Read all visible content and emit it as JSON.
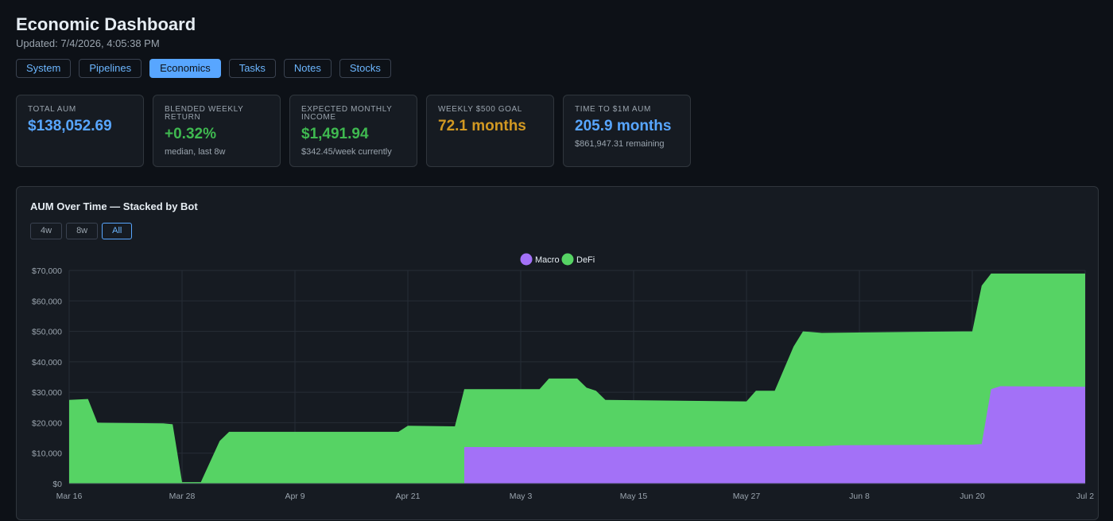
{
  "header": {
    "title": "Economic Dashboard",
    "updated": "Updated: 7/4/2026, 4:05:38 PM"
  },
  "tabs": [
    {
      "label": "System",
      "active": false
    },
    {
      "label": "Pipelines",
      "active": false
    },
    {
      "label": "Economics",
      "active": true
    },
    {
      "label": "Tasks",
      "active": false
    },
    {
      "label": "Notes",
      "active": false
    },
    {
      "label": "Stocks",
      "active": false
    }
  ],
  "cards": [
    {
      "label": "TOTAL AUM",
      "value": "$138,052.69",
      "sub": "",
      "color": "#58a6ff"
    },
    {
      "label": "BLENDED WEEKLY RETURN",
      "value": "+0.32%",
      "sub": "median, last 8w",
      "color": "#3fb950"
    },
    {
      "label": "EXPECTED MONTHLY INCOME",
      "value": "$1,491.94",
      "sub": "$342.45/week currently",
      "color": "#3fb950"
    },
    {
      "label": "WEEKLY $500 GOAL",
      "value": "72.1 months",
      "sub": "",
      "color": "#d29922"
    },
    {
      "label": "TIME TO $1M AUM",
      "value": "205.9 months",
      "sub": "$861,947.31 remaining",
      "color": "#58a6ff"
    }
  ],
  "chart_panel": {
    "title": "AUM Over Time — Stacked by Bot",
    "range_buttons": [
      {
        "label": "4w",
        "active": false
      },
      {
        "label": "8w",
        "active": false
      },
      {
        "label": "All",
        "active": true
      }
    ]
  },
  "chart_data": {
    "type": "area",
    "stacked": true,
    "legend_position": "top-center",
    "grid": true,
    "ylim": [
      0,
      70000
    ],
    "y_ticks": [
      0,
      10000,
      20000,
      30000,
      40000,
      50000,
      60000,
      70000
    ],
    "y_tick_labels": [
      "$0",
      "$10,000",
      "$20,000",
      "$30,000",
      "$40,000",
      "$50,000",
      "$60,000",
      "$70,000"
    ],
    "x_start": "2026-03-16",
    "x_end": "2026-07-02",
    "x_ticks": [
      "2026-03-16",
      "2026-03-28",
      "2026-04-09",
      "2026-04-21",
      "2026-05-03",
      "2026-05-15",
      "2026-05-27",
      "2026-06-08",
      "2026-06-20",
      "2026-07-02"
    ],
    "x_tick_labels": [
      "Mar 16",
      "Mar 28",
      "Apr 9",
      "Apr 21",
      "May 3",
      "May 15",
      "May 27",
      "Jun 8",
      "Jun 20",
      "Jul 2"
    ],
    "series": [
      {
        "name": "Macro",
        "color": "#a371f7",
        "points": [
          [
            "2026-04-27",
            0
          ],
          [
            "2026-04-27",
            12000
          ],
          [
            "2026-05-15",
            12100
          ],
          [
            "2026-06-04",
            12300
          ],
          [
            "2026-06-06",
            12600
          ],
          [
            "2026-06-20",
            12800
          ],
          [
            "2026-06-21",
            13000
          ],
          [
            "2026-06-22",
            31000
          ],
          [
            "2026-06-23",
            32000
          ],
          [
            "2026-07-02",
            31800
          ]
        ]
      },
      {
        "name": "DeFi",
        "color": "#56d364",
        "total_points": [
          [
            "2026-03-16",
            27500
          ],
          [
            "2026-03-18",
            27800
          ],
          [
            "2026-03-19",
            20000
          ],
          [
            "2026-03-26",
            19800
          ],
          [
            "2026-03-27",
            19500
          ],
          [
            "2026-03-28",
            500
          ],
          [
            "2026-03-30",
            500
          ],
          [
            "2026-04-01",
            14000
          ],
          [
            "2026-04-02",
            17000
          ],
          [
            "2026-04-20",
            17000
          ],
          [
            "2026-04-21",
            19000
          ],
          [
            "2026-04-26",
            18800
          ],
          [
            "2026-04-27",
            31000
          ],
          [
            "2026-05-05",
            31000
          ],
          [
            "2026-05-06",
            34500
          ],
          [
            "2026-05-09",
            34500
          ],
          [
            "2026-05-10",
            31500
          ],
          [
            "2026-05-11",
            30500
          ],
          [
            "2026-05-12",
            27500
          ],
          [
            "2026-05-27",
            27000
          ],
          [
            "2026-05-28",
            30500
          ],
          [
            "2026-05-30",
            30500
          ],
          [
            "2026-06-01",
            45000
          ],
          [
            "2026-06-02",
            50000
          ],
          [
            "2026-06-04",
            49500
          ],
          [
            "2026-06-19",
            50000
          ],
          [
            "2026-06-20",
            50000
          ],
          [
            "2026-06-21",
            65000
          ],
          [
            "2026-06-22",
            69000
          ],
          [
            "2026-07-02",
            69000
          ]
        ]
      }
    ]
  }
}
